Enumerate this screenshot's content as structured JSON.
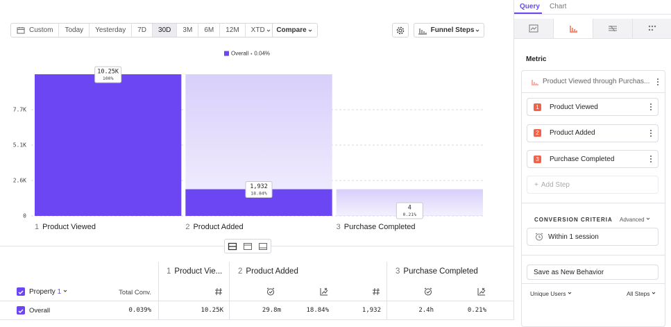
{
  "toolbar": {
    "date_ranges": [
      "Custom",
      "Today",
      "Yesterday",
      "7D",
      "30D",
      "3M",
      "6M",
      "12M",
      "XTD"
    ],
    "selected_date_range": 4,
    "compare": "Compare",
    "chart_type": "Funnel Steps"
  },
  "chart_data": {
    "type": "bar",
    "categories": [
      "Product Viewed",
      "Product Added",
      "Purchase Completed"
    ],
    "category_numbers": [
      1,
      2,
      3
    ],
    "series": [
      {
        "name": "Overall",
        "color": "#6b46f2",
        "values": [
          10250,
          1932,
          4
        ],
        "value_labels": [
          "10.25K",
          "1,932",
          "4"
        ],
        "conversion": [
          100,
          18.84,
          0.21
        ],
        "conversion_labels": [
          "100%",
          "18.84%",
          "0.21%"
        ]
      }
    ],
    "overall_conversion": {
      "value": 0.04,
      "label": "0.04%"
    },
    "ylim": [
      0,
      10250
    ],
    "yticks": [
      0,
      {
        "value": 2562.5,
        "label": "2.6K"
      },
      {
        "value": 5125,
        "label": "5.1K"
      },
      {
        "value": 7687.5,
        "label": "7.7K"
      }
    ],
    "grid": true
  },
  "table": {
    "steps": [
      {
        "number": 1,
        "name": "Product Vie..."
      },
      {
        "number": 2,
        "name": "Product Added"
      },
      {
        "number": 3,
        "name": "Purchase Completed"
      }
    ],
    "property_header": "Property",
    "property_count": 1,
    "total_conv_header": "Total Conv.",
    "rows": [
      {
        "label": "Overall",
        "total_conv": "0.039%",
        "cells": [
          "10.25K",
          "29.8m",
          "18.84%",
          "1,932",
          "2.4h",
          "0.21%"
        ]
      }
    ]
  },
  "sidebar": {
    "tabs": [
      "Query",
      "Chart"
    ],
    "metric_label": "Metric",
    "metric_name": "Product Viewed through Purchas...",
    "steps": [
      {
        "number": 1,
        "name": "Product Viewed"
      },
      {
        "number": 2,
        "name": "Product Added"
      },
      {
        "number": 3,
        "name": "Purchase Completed"
      }
    ],
    "add_step": "Add Step",
    "conversion_criteria": "CONVERSION CRITERIA",
    "advanced": "Advanced",
    "window": "Within 1 session",
    "save": "Save as New Behavior",
    "count_by": "Unique Users",
    "steps_filter": "All Steps"
  }
}
